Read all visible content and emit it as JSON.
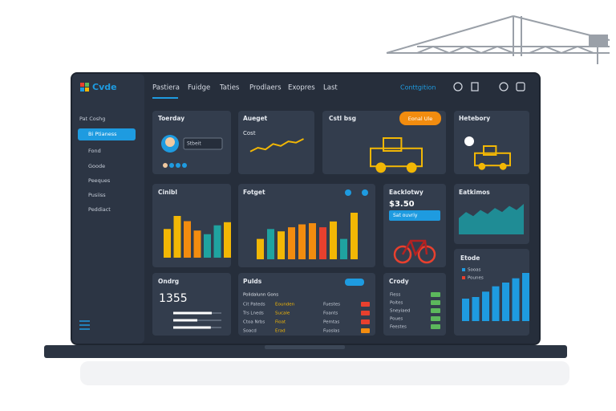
{
  "app": {
    "logo": "Cvde"
  },
  "sidebar": {
    "items": [
      "Pat Coshg",
      "Bi Ptianess",
      "Fond",
      "Goode",
      "Peeques",
      "Pusiiss",
      "Peddiact"
    ]
  },
  "topnav": {
    "items": [
      "Pastiera",
      "Fuidge",
      "Taties",
      "Prodlaers",
      "Exopres",
      "Last"
    ],
    "account": "Conttgition"
  },
  "cards": {
    "today": {
      "title": "Toerday",
      "input": "Stbeit"
    },
    "budget": {
      "title": "Aueget",
      "subtitle": "Cost",
      "line": [
        20,
        35,
        28,
        50,
        42,
        60,
        55,
        70
      ]
    },
    "status": {
      "title": "Cstl bsg",
      "button": "Eonal Ule"
    },
    "history": {
      "title": "Hetebory"
    },
    "control": {
      "title": "Cinibl",
      "bars": [
        55,
        80,
        70,
        52,
        45,
        62,
        68
      ],
      "colors": [
        "#f2b705",
        "#f2b705",
        "#f28c0f",
        "#f28c0f",
        "#1fa3a0",
        "#1fa3a0",
        "#f2b705"
      ]
    },
    "forecast": {
      "title": "Fotget",
      "bars": [
        35,
        52,
        48,
        55,
        60,
        62,
        55,
        65,
        35,
        80
      ],
      "colors": [
        "#f2b705",
        "#1fa3a0",
        "#f2b705",
        "#f28c0f",
        "#f28c0f",
        "#f28c0f",
        "#e8402e",
        "#f2b705",
        "#1fa3a0",
        "#f2b705"
      ]
    },
    "delivery": {
      "title": "Eacklotwy",
      "price": "$3.50",
      "button": "Sat ouvriy"
    },
    "estimates": {
      "title": "Eatkimos",
      "area": [
        40,
        55,
        45,
        60,
        50,
        65,
        55,
        70,
        60,
        75
      ]
    },
    "orders": {
      "title": "Ondrg",
      "count": 1355,
      "sliders": [
        80,
        50,
        78
      ]
    },
    "funds": {
      "title": "Pulds",
      "header": "Polidalunn Gons",
      "rows": [
        [
          "Cit Pateds",
          "Eounden",
          "Fuestes"
        ],
        [
          "Trs Lneds",
          "Sucale",
          "Foants"
        ],
        [
          "Ctoa Nrbs",
          "Fioat",
          "Pemtas"
        ],
        [
          "Soacd",
          "Erad",
          "Fuoslas"
        ]
      ],
      "status": [
        "#e8402e",
        "#e8402e",
        "#e8402e",
        "#f28c0f"
      ]
    },
    "crody": {
      "title": "Crody",
      "rows": [
        "Fiess",
        "Poites",
        "Sneyiaed",
        "Poues",
        "Feestes"
      ]
    },
    "etode": {
      "title": "Etode",
      "legend": [
        "Sooas",
        "Pounes"
      ],
      "bars": [
        42,
        45,
        55,
        65,
        72,
        80,
        90
      ]
    }
  }
}
